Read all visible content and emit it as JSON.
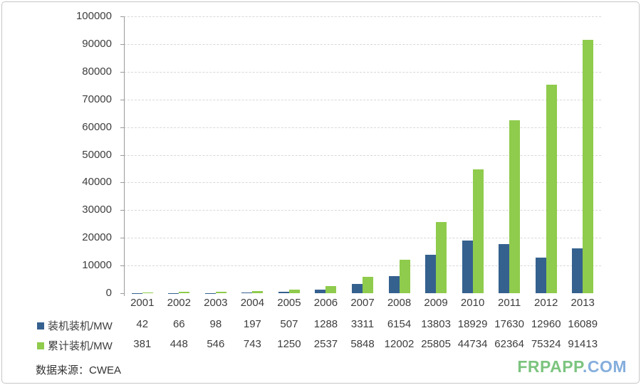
{
  "chart_data": {
    "type": "bar",
    "title": "",
    "categories": [
      "2001",
      "2002",
      "2003",
      "2004",
      "2005",
      "2006",
      "2007",
      "2008",
      "2009",
      "2010",
      "2011",
      "2012",
      "2013"
    ],
    "series": [
      {
        "name": "装机装机/MW",
        "color": "#35618F",
        "values": [
          42,
          66,
          98,
          197,
          507,
          1288,
          3311,
          6154,
          13803,
          18929,
          17630,
          12960,
          16089
        ]
      },
      {
        "name": "累计装机/MW",
        "color": "#8FCB4C",
        "values": [
          381,
          448,
          546,
          743,
          1250,
          2537,
          5848,
          12002,
          25805,
          44734,
          62364,
          75324,
          91413
        ]
      }
    ],
    "xlabel": "",
    "ylabel": "",
    "ylim": [
      0,
      100000
    ],
    "ytick_step": 10000,
    "grid": "horizontal-dashed",
    "legend_position": "left-of-data-table"
  },
  "source_note": "数据来源：CWEA",
  "watermark": {
    "green_text": "FRPAPP",
    "blue_text": ".COM"
  },
  "colors": {
    "bar_blue": "#35618F",
    "bar_green": "#8FCB4C",
    "grid": "#d8d8d8",
    "axis": "#9a9a9a",
    "text": "#3d3d3d",
    "watermark_green": "#7CC47F",
    "watermark_blue": "#85AEDC",
    "frame_border": "#c6c6c6"
  }
}
